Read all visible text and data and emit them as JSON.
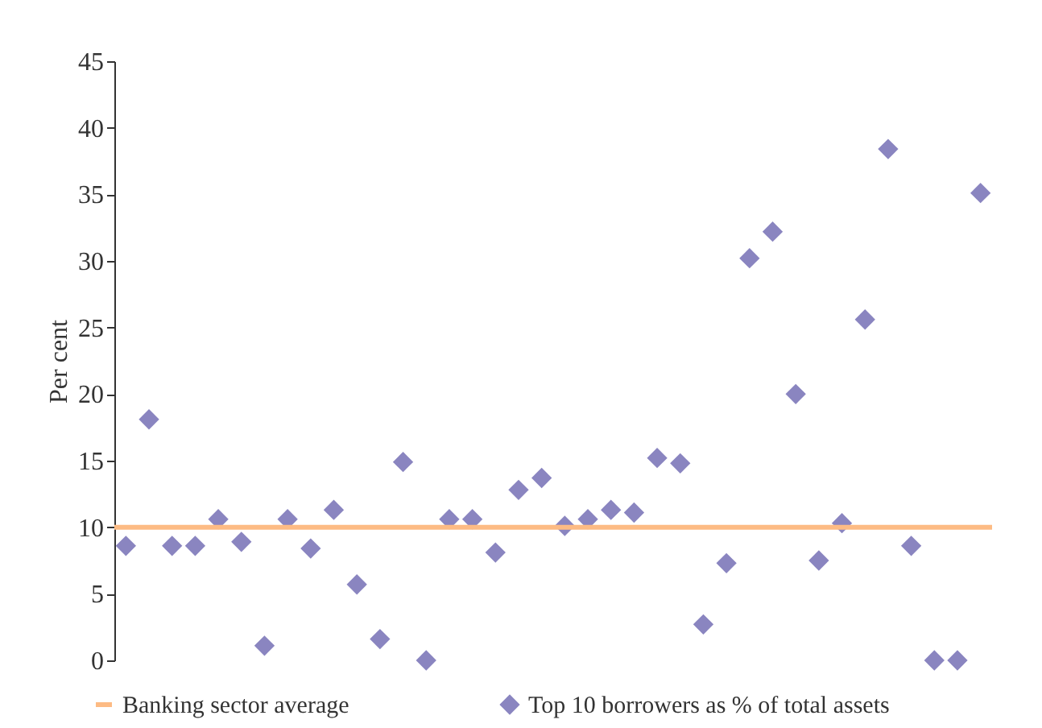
{
  "chart_data": {
    "type": "scatter",
    "ylabel": "Per cent",
    "categories": [
      null,
      null,
      null,
      null,
      null,
      null,
      null,
      null,
      null,
      null,
      null,
      null,
      null,
      null,
      null,
      null,
      null,
      null,
      null,
      null,
      null,
      null,
      null,
      null,
      null,
      null,
      null,
      null,
      null,
      null,
      null,
      null,
      null,
      null,
      null,
      null,
      null,
      null
    ],
    "series": [
      {
        "name": "Top 10 borrowers as % of total assets",
        "color": "#8a85c0",
        "values": [
          8.6,
          18.1,
          8.6,
          8.6,
          10.6,
          8.9,
          1.1,
          10.6,
          8.4,
          11.3,
          5.7,
          1.6,
          14.9,
          0,
          10.6,
          10.6,
          8.1,
          12.8,
          13.7,
          10.1,
          10.6,
          11.3,
          11.1,
          15.2,
          14.8,
          2.7,
          7.3,
          30.2,
          32.2,
          20.0,
          7.5,
          10.3,
          25.6,
          38.4,
          8.6,
          0,
          0,
          35.1
        ]
      }
    ],
    "ref_lines": [
      {
        "axis": "y",
        "value": 10,
        "label": "Banking sector average",
        "color": "#fdbb84"
      }
    ],
    "ylim": [
      0,
      45
    ],
    "yticks": [
      0,
      5,
      10,
      15,
      20,
      25,
      30,
      35,
      40,
      45
    ],
    "marker": "diamond",
    "grid": false,
    "legend": "bottom",
    "tick_labels": "y"
  }
}
